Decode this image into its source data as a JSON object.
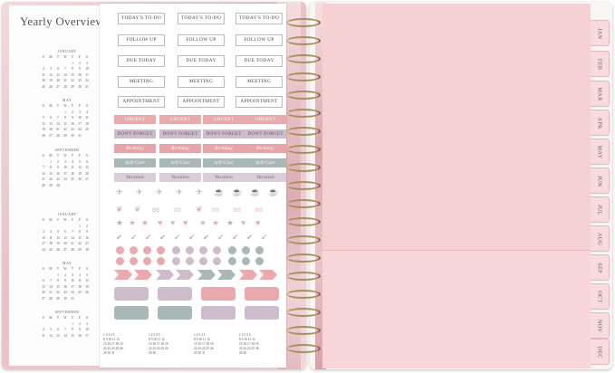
{
  "overview": {
    "title": "Yearly Overview",
    "months": [
      "JANUARY",
      "MAY",
      "SEPTEMBER",
      "JANUARY",
      "MAY",
      "SEPTEMBER"
    ],
    "weekday_header": [
      "S",
      "M",
      "T",
      "W",
      "T",
      "F",
      "S"
    ]
  },
  "stickers": {
    "row1": [
      "TODAY'S TO-DO",
      "TODAY'S TO-DO",
      "TODAY'S TO-DO"
    ],
    "row2": [
      "FOLLOW UP",
      "FOLLOW UP",
      "FOLLOW UP"
    ],
    "row3": [
      "DUE TODAY",
      "DUE TODAY",
      "DUE TODAY"
    ],
    "row4": [
      "MEETING",
      "MEETING",
      "MEETING"
    ],
    "row5": [
      "APPOINTMENT",
      "APPOINTMENT",
      "APPOINTMENT"
    ],
    "urgent": [
      "URGENT",
      "URGENT",
      "URGENT",
      "URGENT"
    ],
    "dont_forget": [
      "DON'T FORGET",
      "DON'T FORGET",
      "DON'T FORGET",
      "DON'T FORGET"
    ],
    "birthday": [
      "Birthday",
      "Birthday",
      "Birthday",
      "Birthday"
    ],
    "self_care": [
      "Self-Care",
      "Self-Care",
      "Self-Care",
      "Self-Care"
    ],
    "vacation": [
      "Vacation",
      "Vacation",
      "Vacation",
      "Vacation"
    ]
  },
  "tabs": [
    "JAN",
    "FEB",
    "MAR",
    "APR",
    "MAY",
    "JUN",
    "JUL",
    "AUG",
    "SEP",
    "OCT",
    "NOV",
    "DEC"
  ],
  "colors": {
    "pink": "#e9a9ad",
    "lilac": "#cdbdcc",
    "sage": "#a9b7b7",
    "pocket": "#f6d1d4",
    "ring": "#a88f5e"
  }
}
